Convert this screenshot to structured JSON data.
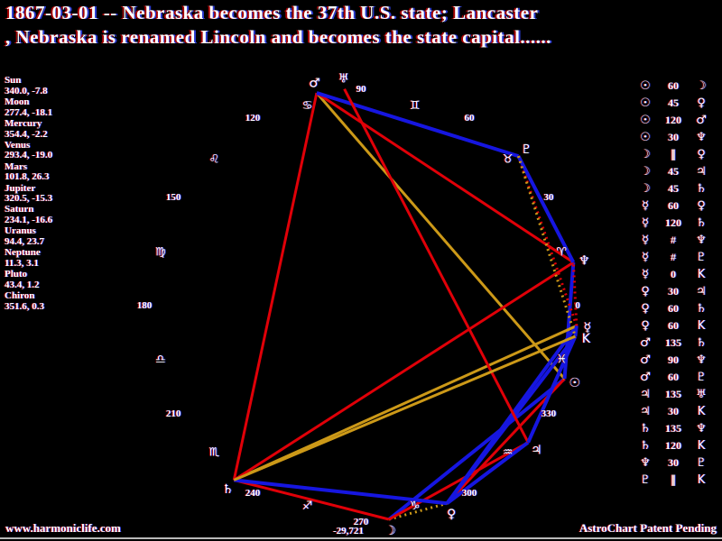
{
  "title": {
    "line1": "1867-03-01 -- Nebraska becomes the 37th U.S. state; Lancaster",
    "line2": ", Nebraska is renamed Lincoln and becomes the state capital......"
  },
  "footer": {
    "website": "www.harmoniclife.com",
    "branding": "AstroChart Patent Pending"
  },
  "colors": {
    "background": "#000000",
    "text": "#ffffff",
    "hard_aspect_red": "#e00008",
    "soft_aspect_blue": "#1616e0",
    "trine_aspect_gold": "#cc9918"
  },
  "chart_data": {
    "type": "astrological-wheel",
    "orientation": "0 degrees Aries at right, longitude increases counterclockwise",
    "degree_labels": [
      0,
      30,
      60,
      90,
      120,
      150,
      180,
      210,
      240,
      270,
      300,
      330
    ],
    "zodiac_signs": [
      {
        "name": "Aries",
        "glyph": "♈",
        "mid_longitude": 15
      },
      {
        "name": "Taurus",
        "glyph": "♉",
        "mid_longitude": 45
      },
      {
        "name": "Gemini",
        "glyph": "♊",
        "mid_longitude": 75
      },
      {
        "name": "Cancer",
        "glyph": "♋",
        "mid_longitude": 105
      },
      {
        "name": "Leo",
        "glyph": "♌",
        "mid_longitude": 135
      },
      {
        "name": "Virgo",
        "glyph": "♍",
        "mid_longitude": 165
      },
      {
        "name": "Libra",
        "glyph": "♎",
        "mid_longitude": 195
      },
      {
        "name": "Scorpio",
        "glyph": "♏",
        "mid_longitude": 225
      },
      {
        "name": "Sagittarius",
        "glyph": "♐",
        "mid_longitude": 255
      },
      {
        "name": "Capricorn",
        "glyph": "♑",
        "mid_longitude": 285
      },
      {
        "name": "Aquarius",
        "glyph": "♒",
        "mid_longitude": 315
      },
      {
        "name": "Pisces",
        "glyph": "♓",
        "mid_longitude": 345
      }
    ],
    "planets": [
      {
        "name": "Sun",
        "glyph": "☉",
        "longitude": 340.0,
        "declination": -7.8
      },
      {
        "name": "Moon",
        "glyph": "☽",
        "longitude": 277.4,
        "declination": -18.1
      },
      {
        "name": "Mercury",
        "glyph": "☿",
        "longitude": 354.4,
        "declination": -2.2
      },
      {
        "name": "Venus",
        "glyph": "♀",
        "longitude": 293.4,
        "declination": -19.0
      },
      {
        "name": "Mars",
        "glyph": "♂",
        "longitude": 101.8,
        "declination": 26.3
      },
      {
        "name": "Jupiter",
        "glyph": "♃",
        "longitude": 320.5,
        "declination": -15.3
      },
      {
        "name": "Saturn",
        "glyph": "♄",
        "longitude": 234.1,
        "declination": -16.6
      },
      {
        "name": "Uranus",
        "glyph": "♅",
        "longitude": 94.4,
        "declination": 23.7
      },
      {
        "name": "Neptune",
        "glyph": "♆",
        "longitude": 11.3,
        "declination": 3.1
      },
      {
        "name": "Pluto",
        "glyph": "♇",
        "longitude": 43.4,
        "declination": 1.2
      },
      {
        "name": "Chiron",
        "glyph": "K",
        "longitude": 351.6,
        "declination": 0.3
      }
    ],
    "moon_annotation": "-29,721",
    "aspects": [
      {
        "from": "Sun",
        "aspect": "60",
        "to": "Moon"
      },
      {
        "from": "Sun",
        "aspect": "45",
        "to": "Venus"
      },
      {
        "from": "Sun",
        "aspect": "120",
        "to": "Mars"
      },
      {
        "from": "Sun",
        "aspect": "30",
        "to": "Neptune"
      },
      {
        "from": "Moon",
        "aspect": "∥",
        "to": "Venus"
      },
      {
        "from": "Moon",
        "aspect": "45",
        "to": "Jupiter"
      },
      {
        "from": "Moon",
        "aspect": "45",
        "to": "Saturn"
      },
      {
        "from": "Mercury",
        "aspect": "60",
        "to": "Venus"
      },
      {
        "from": "Mercury",
        "aspect": "120",
        "to": "Saturn"
      },
      {
        "from": "Mercury",
        "aspect": "#",
        "to": "Neptune"
      },
      {
        "from": "Mercury",
        "aspect": "#",
        "to": "Pluto"
      },
      {
        "from": "Mercury",
        "aspect": "0",
        "to": "Chiron"
      },
      {
        "from": "Venus",
        "aspect": "30",
        "to": "Jupiter"
      },
      {
        "from": "Venus",
        "aspect": "60",
        "to": "Saturn"
      },
      {
        "from": "Venus",
        "aspect": "60",
        "to": "Chiron"
      },
      {
        "from": "Mars",
        "aspect": "135",
        "to": "Saturn"
      },
      {
        "from": "Mars",
        "aspect": "90",
        "to": "Neptune"
      },
      {
        "from": "Mars",
        "aspect": "60",
        "to": "Pluto"
      },
      {
        "from": "Jupiter",
        "aspect": "135",
        "to": "Uranus"
      },
      {
        "from": "Jupiter",
        "aspect": "30",
        "to": "Chiron"
      },
      {
        "from": "Saturn",
        "aspect": "135",
        "to": "Neptune"
      },
      {
        "from": "Saturn",
        "aspect": "120",
        "to": "Chiron"
      },
      {
        "from": "Neptune",
        "aspect": "30",
        "to": "Pluto"
      },
      {
        "from": "Pluto",
        "aspect": "∥",
        "to": "Chiron"
      }
    ]
  }
}
